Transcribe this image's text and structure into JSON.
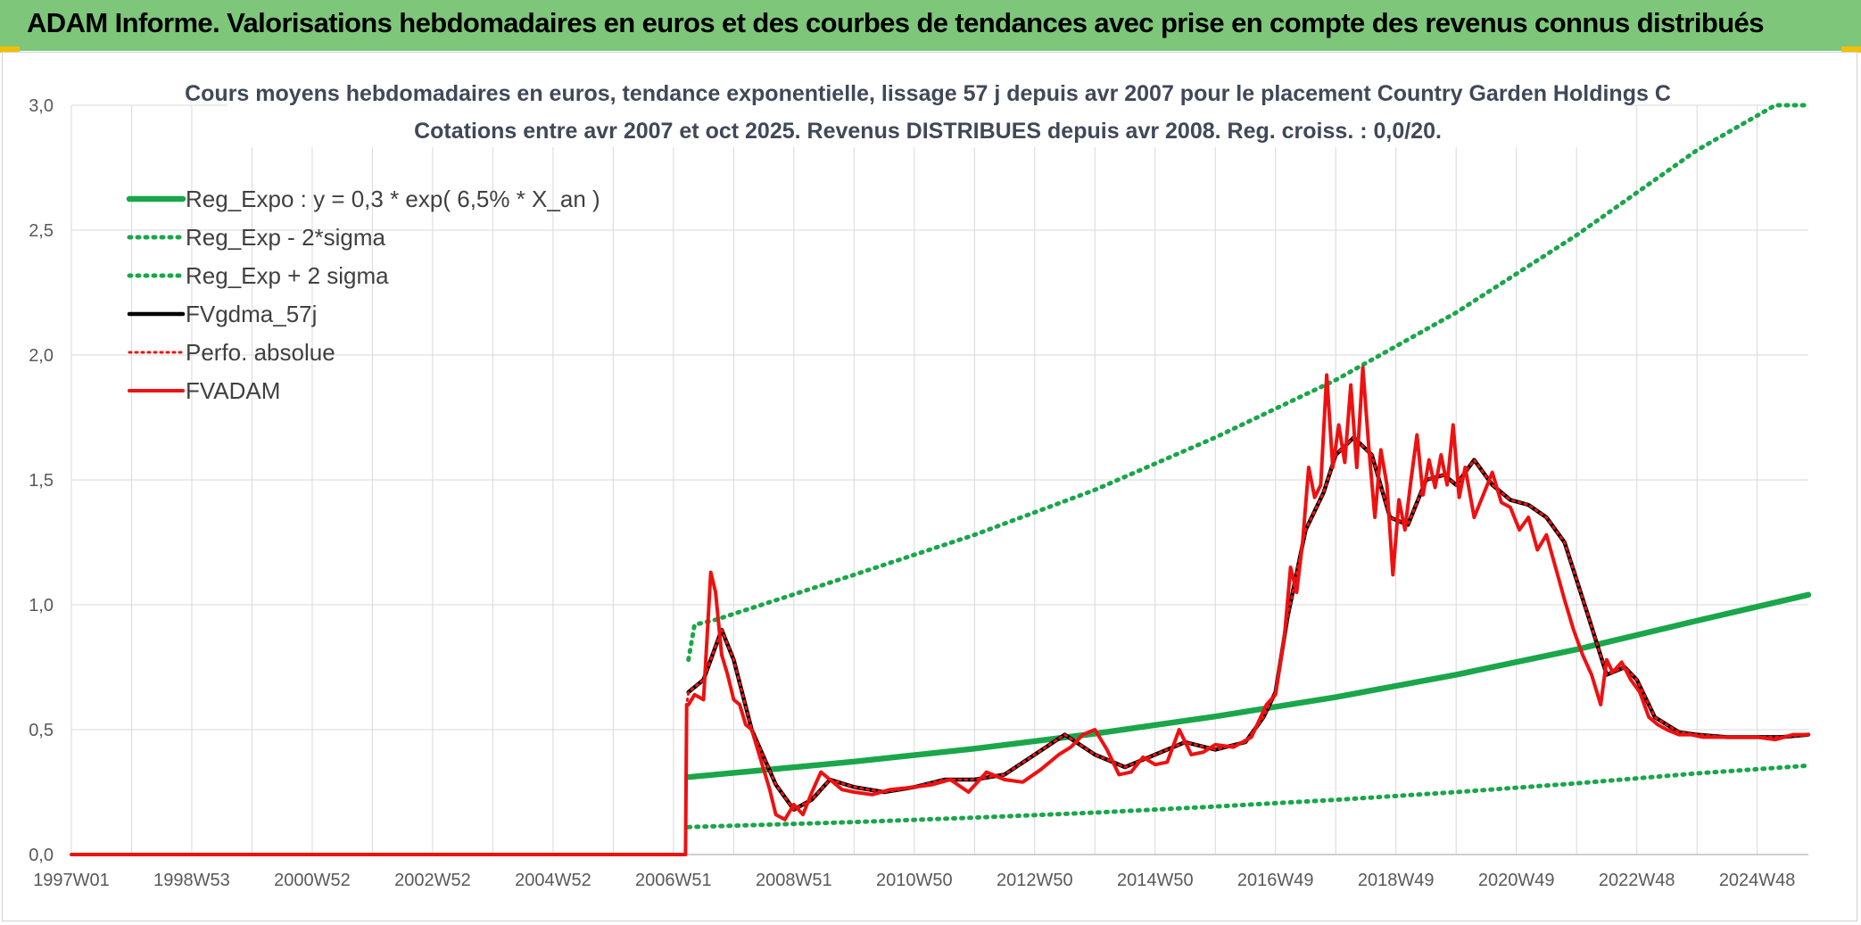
{
  "header": {
    "title": "ADAM Informe. Valorisations hebdomadaires en euros et des courbes de tendances avec prise en compte des revenus connus distribués"
  },
  "colors": {
    "header_bg": "#7dc67a",
    "corner_accent": "#f1bf00",
    "reg_expo": "#1aa64a",
    "sigma_bands": "#1aa64a",
    "fvgdma": "#000000",
    "fvadam": "#ee1111",
    "perfo": "#ee1111",
    "grid": "#d9d9d9"
  },
  "chart_data": {
    "type": "line",
    "title": "Cours moyens hebdomadaires en euros, tendance exponentielle, lissage 57 j depuis avr 2007 pour le placement Country Garden Holdings C",
    "subtitle": "Cotations entre avr 2007 et oct 2025. Revenus DISTRIBUES depuis avr 2008. Reg. croiss. : 0,0/20.",
    "xlabel": "",
    "ylabel": "",
    "xlim": [
      1997.0,
      2025.85
    ],
    "ylim": [
      0,
      3.0
    ],
    "grid": true,
    "legend_position": "top-left",
    "x_ticks": [
      "1997W01",
      "1998W53",
      "2000W52",
      "2002W52",
      "2004W52",
      "2006W51",
      "2008W51",
      "2010W50",
      "2012W50",
      "2014W50",
      "2016W49",
      "2018W49",
      "2020W49",
      "2022W48",
      "2024W48"
    ],
    "x_tick_values": [
      1997.0,
      1999.0,
      2001.0,
      2003.0,
      2005.0,
      2007.0,
      2009.0,
      2011.0,
      2013.0,
      2015.0,
      2017.0,
      2019.0,
      2021.0,
      2023.0,
      2025.0
    ],
    "y_ticks": [
      "0,0",
      "0,5",
      "1,0",
      "1,5",
      "2,0",
      "2,5",
      "3,0"
    ],
    "y_tick_values": [
      0,
      0.5,
      1.0,
      1.5,
      2.0,
      2.5,
      3.0
    ],
    "legend": [
      {
        "key": "reg_expo",
        "label": "Reg_Expo : y = 0,3 * exp( 6,5% *  X_an )",
        "style": "solid-thick",
        "color": "#1aa64a"
      },
      {
        "key": "reg_minus",
        "label": "Reg_Exp - 2*sigma",
        "style": "dotted",
        "color": "#1aa64a"
      },
      {
        "key": "reg_plus",
        "label": "Reg_Exp + 2 sigma",
        "style": "dotted",
        "color": "#1aa64a"
      },
      {
        "key": "fvgdma",
        "label": "FVgdma_57j",
        "style": "solid",
        "color": "#000000"
      },
      {
        "key": "perfo",
        "label": "Perfo. absolue",
        "style": "dotted",
        "color": "#ee1111"
      },
      {
        "key": "fvadam",
        "label": "FVADAM",
        "style": "solid-thick",
        "color": "#ee1111"
      }
    ],
    "series": [
      {
        "key": "reg_expo",
        "x": [
          2007.25,
          2010,
          2012,
          2014,
          2016,
          2018,
          2020,
          2022,
          2024,
          2025.85
        ],
        "y": [
          0.31,
          0.372,
          0.424,
          0.484,
          0.553,
          0.63,
          0.72,
          0.821,
          0.936,
          1.04
        ]
      },
      {
        "key": "reg_minus",
        "x": [
          2007.25,
          2010,
          2012,
          2014,
          2016,
          2018,
          2020,
          2022,
          2024,
          2025.85
        ],
        "y": [
          0.11,
          0.13,
          0.148,
          0.168,
          0.192,
          0.219,
          0.25,
          0.285,
          0.325,
          0.356
        ]
      },
      {
        "key": "reg_plus",
        "x": [
          2007.25,
          2007.35,
          2007.7,
          2010,
          2012,
          2014,
          2016,
          2018,
          2020,
          2022,
          2024,
          2025.3,
          2025.85
        ],
        "y": [
          0.78,
          0.92,
          0.94,
          1.12,
          1.28,
          1.46,
          1.67,
          1.9,
          2.17,
          2.48,
          2.82,
          3.0,
          3.0
        ]
      },
      {
        "key": "fvgdma",
        "x": [
          2007.25,
          2007.5,
          2007.8,
          2008.0,
          2008.3,
          2008.7,
          2009.0,
          2009.3,
          2009.6,
          2010.0,
          2010.5,
          2011.0,
          2011.5,
          2012.0,
          2012.5,
          2013.0,
          2013.5,
          2014.0,
          2014.5,
          2015.0,
          2015.5,
          2016.0,
          2016.5,
          2016.8,
          2017.0,
          2017.2,
          2017.5,
          2017.8,
          2018.0,
          2018.3,
          2018.6,
          2018.9,
          2019.2,
          2019.5,
          2019.8,
          2020.0,
          2020.3,
          2020.6,
          2020.9,
          2021.2,
          2021.5,
          2021.8,
          2022.0,
          2022.2,
          2022.5,
          2022.8,
          2023.0,
          2023.3,
          2023.7,
          2024.0,
          2024.5,
          2025.0,
          2025.4,
          2025.85
        ],
        "y": [
          0.65,
          0.7,
          0.9,
          0.78,
          0.5,
          0.28,
          0.18,
          0.22,
          0.3,
          0.27,
          0.25,
          0.27,
          0.3,
          0.3,
          0.32,
          0.4,
          0.48,
          0.4,
          0.35,
          0.4,
          0.45,
          0.42,
          0.45,
          0.55,
          0.65,
          0.95,
          1.3,
          1.45,
          1.6,
          1.67,
          1.6,
          1.35,
          1.32,
          1.5,
          1.52,
          1.48,
          1.58,
          1.48,
          1.42,
          1.4,
          1.35,
          1.25,
          1.1,
          0.95,
          0.72,
          0.75,
          0.7,
          0.55,
          0.49,
          0.48,
          0.47,
          0.47,
          0.47,
          0.48
        ]
      },
      {
        "key": "perfo",
        "x": [
          1997.0,
          2007.2,
          2007.22,
          2007.25,
          2007.5,
          2007.8,
          2008.0,
          2008.3,
          2008.7,
          2009.0,
          2009.3,
          2009.6,
          2010.0,
          2010.5,
          2011.0,
          2011.5,
          2012.0,
          2012.5,
          2013.0,
          2013.5,
          2014.0,
          2014.5,
          2015.0,
          2015.5,
          2016.0,
          2016.5,
          2016.8,
          2017.0,
          2017.2,
          2017.5,
          2017.8,
          2018.0,
          2018.3,
          2018.6,
          2018.9,
          2019.2,
          2019.5,
          2019.8,
          2020.0,
          2020.3,
          2020.6,
          2020.9,
          2021.2,
          2021.5,
          2021.8,
          2022.0,
          2022.2,
          2022.5,
          2022.8,
          2023.0,
          2023.3,
          2023.7,
          2024.0,
          2024.5,
          2025.0,
          2025.4,
          2025.85
        ],
        "y": [
          0,
          0,
          0.6,
          0.65,
          0.7,
          0.9,
          0.78,
          0.5,
          0.28,
          0.18,
          0.22,
          0.3,
          0.27,
          0.25,
          0.27,
          0.3,
          0.3,
          0.32,
          0.4,
          0.48,
          0.4,
          0.35,
          0.4,
          0.45,
          0.42,
          0.45,
          0.55,
          0.65,
          0.95,
          1.3,
          1.45,
          1.6,
          1.67,
          1.6,
          1.35,
          1.32,
          1.5,
          1.52,
          1.48,
          1.58,
          1.48,
          1.42,
          1.4,
          1.35,
          1.25,
          1.1,
          0.95,
          0.72,
          0.75,
          0.7,
          0.55,
          0.49,
          0.48,
          0.47,
          0.47,
          0.47,
          0.48
        ]
      },
      {
        "key": "fvadam",
        "x": [
          1997.0,
          2007.2,
          2007.22,
          2007.25,
          2007.35,
          2007.5,
          2007.62,
          2007.7,
          2007.8,
          2007.9,
          2008.0,
          2008.1,
          2008.2,
          2008.3,
          2008.45,
          2008.6,
          2008.7,
          2008.85,
          2009.0,
          2009.15,
          2009.3,
          2009.45,
          2009.6,
          2009.8,
          2010.0,
          2010.3,
          2010.6,
          2011.0,
          2011.3,
          2011.6,
          2011.9,
          2012.2,
          2012.5,
          2012.8,
          2013.1,
          2013.4,
          2013.6,
          2013.8,
          2014.0,
          2014.2,
          2014.4,
          2014.6,
          2014.8,
          2015.0,
          2015.2,
          2015.4,
          2015.6,
          2015.8,
          2016.0,
          2016.3,
          2016.6,
          2016.85,
          2017.0,
          2017.15,
          2017.25,
          2017.35,
          2017.45,
          2017.55,
          2017.65,
          2017.75,
          2017.85,
          2017.95,
          2018.05,
          2018.15,
          2018.25,
          2018.35,
          2018.45,
          2018.55,
          2018.65,
          2018.75,
          2018.85,
          2018.95,
          2019.05,
          2019.15,
          2019.25,
          2019.35,
          2019.45,
          2019.55,
          2019.65,
          2019.75,
          2019.85,
          2019.95,
          2020.05,
          2020.15,
          2020.3,
          2020.45,
          2020.6,
          2020.75,
          2020.9,
          2021.05,
          2021.2,
          2021.35,
          2021.5,
          2021.65,
          2021.8,
          2021.95,
          2022.1,
          2022.25,
          2022.4,
          2022.5,
          2022.6,
          2022.75,
          2022.9,
          2023.05,
          2023.2,
          2023.35,
          2023.5,
          2023.7,
          2023.9,
          2024.1,
          2024.4,
          2024.7,
          2025.0,
          2025.3,
          2025.6,
          2025.85
        ],
        "y": [
          0,
          0,
          0.6,
          0.6,
          0.64,
          0.62,
          1.13,
          1.05,
          0.8,
          0.72,
          0.62,
          0.6,
          0.52,
          0.5,
          0.38,
          0.26,
          0.16,
          0.14,
          0.2,
          0.16,
          0.25,
          0.33,
          0.3,
          0.26,
          0.25,
          0.24,
          0.26,
          0.27,
          0.28,
          0.3,
          0.25,
          0.33,
          0.3,
          0.29,
          0.34,
          0.4,
          0.43,
          0.48,
          0.5,
          0.42,
          0.32,
          0.33,
          0.39,
          0.36,
          0.37,
          0.5,
          0.4,
          0.41,
          0.44,
          0.43,
          0.47,
          0.6,
          0.64,
          0.88,
          1.15,
          1.05,
          1.25,
          1.55,
          1.43,
          1.48,
          1.92,
          1.55,
          1.72,
          1.57,
          1.88,
          1.55,
          1.95,
          1.63,
          1.35,
          1.62,
          1.48,
          1.12,
          1.42,
          1.3,
          1.5,
          1.68,
          1.44,
          1.58,
          1.47,
          1.6,
          1.48,
          1.72,
          1.43,
          1.55,
          1.35,
          1.44,
          1.53,
          1.41,
          1.39,
          1.3,
          1.35,
          1.22,
          1.28,
          1.15,
          1.02,
          0.9,
          0.8,
          0.72,
          0.6,
          0.78,
          0.73,
          0.77,
          0.7,
          0.65,
          0.55,
          0.52,
          0.5,
          0.48,
          0.48,
          0.47,
          0.47,
          0.47,
          0.47,
          0.46,
          0.48,
          0.48
        ]
      }
    ]
  }
}
